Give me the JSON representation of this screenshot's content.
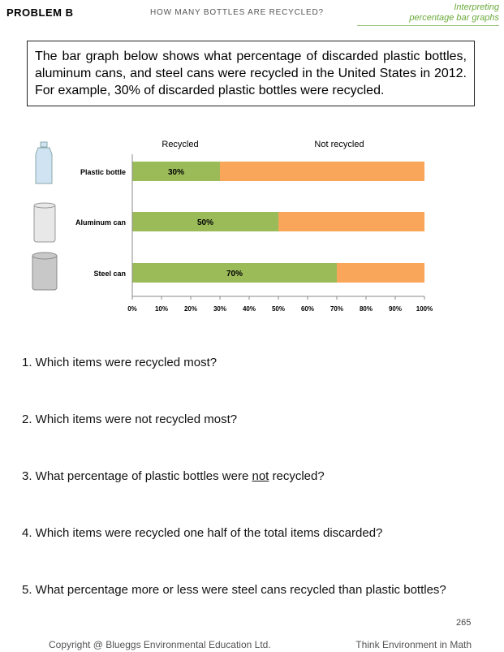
{
  "header": {
    "section": "PROBLEM B",
    "title": "HOW MANY BOTTLES ARE RECYCLED?",
    "topic": [
      "Interpreting",
      "percentage bar graphs"
    ]
  },
  "intro": "The bar graph below shows what percentage of discarded plastic bottles, aluminum cans, and steel cans were recycled in the United States in 2012. For example, 30% of discarded plastic bottles were recycled.",
  "chart_data": {
    "type": "bar",
    "orientation": "horizontal",
    "stacked": true,
    "categories": [
      "Plastic bottle",
      "Aluminum can",
      "Steel can"
    ],
    "series": [
      {
        "name": "Recycled",
        "color": "#9bbb59",
        "values": [
          30,
          50,
          70
        ],
        "value_labels": [
          "30%",
          "50%",
          "70%"
        ]
      },
      {
        "name": "Not recycled",
        "color": "#f9a65a",
        "values": [
          70,
          50,
          30
        ]
      }
    ],
    "xlim": [
      0,
      100
    ],
    "xticks": [
      {
        "value": 0,
        "label": "0%"
      },
      {
        "value": 10,
        "label": "10%"
      },
      {
        "value": 20,
        "label": "20%"
      },
      {
        "value": 30,
        "label": "30%"
      },
      {
        "value": 40,
        "label": "40%"
      },
      {
        "value": 50,
        "label": "50%"
      },
      {
        "value": 60,
        "label": "60%"
      },
      {
        "value": 70,
        "label": "70%"
      },
      {
        "value": 80,
        "label": "80%"
      },
      {
        "value": 90,
        "label": "90%"
      },
      {
        "value": 100,
        "label": "100%"
      }
    ]
  },
  "questions": [
    [
      "1. Which items were recycled most?"
    ],
    [
      "2. Which items were not recycled most?"
    ],
    [
      "3. What percentage of plastic bottles were ",
      "not",
      " recycled?"
    ],
    [
      "4. Which items were recycled one half of the total items discarded?"
    ],
    [
      "5. What percentage more or less were steel cans recycled than plastic bottles?"
    ]
  ],
  "footer": {
    "page": "265",
    "copyright": "Copyright @ Blueggs Environmental Education Ltd.",
    "brand": "Think Environment in Math"
  }
}
